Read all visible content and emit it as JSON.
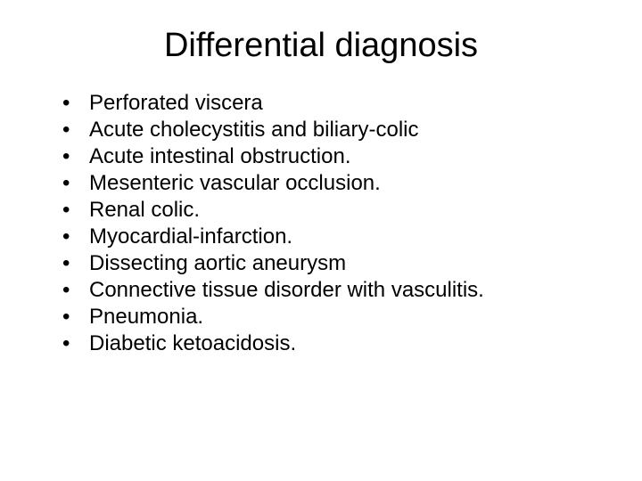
{
  "title": "Differential diagnosis",
  "bullet_char": "•",
  "items": [
    "Perforated viscera",
    "Acute cholecystitis and biliary-colic",
    "Acute intestinal obstruction.",
    "Mesenteric vascular occlusion.",
    "Renal colic.",
    "Myocardial-infarction.",
    "Dissecting aortic aneurysm",
    "Connective tissue disorder with vasculitis.",
    "Pneumonia.",
    "Diabetic ketoacidosis."
  ],
  "colors": {
    "background": "#ffffff",
    "text": "#000000"
  },
  "typography": {
    "title_fontsize": 38,
    "body_fontsize": 24,
    "font_family": "Arial"
  }
}
